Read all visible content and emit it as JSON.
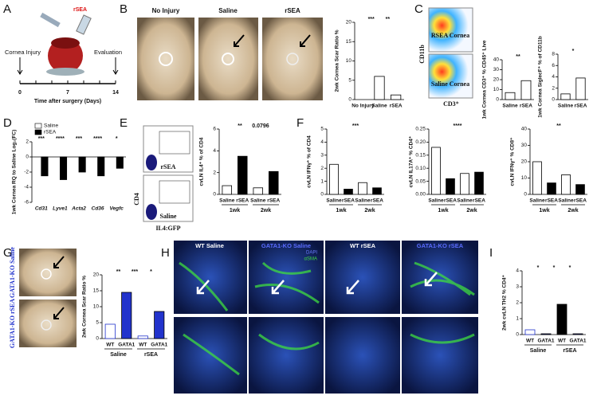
{
  "panels": {
    "A": {
      "label": "A",
      "drug": "rSEA",
      "start": "Cornea Injury",
      "end": "Evaluation",
      "days": [
        "0",
        "7",
        "14"
      ],
      "axis": "Time after surgery (Days)"
    },
    "B": {
      "label": "B",
      "photos": [
        "No Injury",
        "Saline",
        "rSEA"
      ]
    },
    "C": {
      "label": "C",
      "flow": [
        "RSEA Cornea",
        "Saline Cornea"
      ],
      "xaxis": "CD3⁺",
      "yaxis": "CD11b"
    },
    "D": {
      "label": "D"
    },
    "E": {
      "label": "E",
      "flow": [
        "rSEA",
        "Saline"
      ],
      "xaxis": "IL4:GFP",
      "yaxis": "CD4"
    },
    "F": {
      "label": "F"
    },
    "G": {
      "label": "G",
      "photos": [
        "GATA1-KO Saline",
        "GATA1-KO rSEA"
      ]
    },
    "H": {
      "label": "H",
      "images": [
        "WT Saline",
        "GATA1-KO Saline",
        "WT rSEA",
        "GATA1-KO rSEA"
      ],
      "stains": [
        "DAPI",
        "αSMA"
      ]
    },
    "I": {
      "label": "I"
    }
  },
  "chart_data": [
    {
      "type": "bar",
      "ylabel": "2wk Cornea Scar Ratio %",
      "categories": [
        "No Injury",
        "Saline",
        "rSEA"
      ],
      "values": [
        0,
        6,
        1.2
      ],
      "colors": [
        "#fff",
        "#fff",
        "#fff"
      ],
      "ylim": [
        0,
        20
      ],
      "yticks": [
        0,
        5,
        10,
        15,
        20
      ],
      "annotations": [
        "***",
        "**"
      ]
    },
    {
      "type": "bar",
      "ylabel": "1wk Cornea CD3⁺ % CD45⁺ Live",
      "categories": [
        "Saline",
        "rSEA"
      ],
      "values": [
        7,
        19
      ],
      "colors": [
        "#fff",
        "#fff"
      ],
      "ylim": [
        0,
        40
      ],
      "yticks": [
        0,
        10,
        20,
        30,
        40
      ],
      "annotations": [
        "**"
      ]
    },
    {
      "type": "bar",
      "ylabel": "1wk Cornea SiglecF⁺ % of CD11b",
      "categories": [
        "Saline",
        "rSEA"
      ],
      "values": [
        1,
        3.8
      ],
      "colors": [
        "#fff",
        "#fff"
      ],
      "ylim": [
        0,
        8
      ],
      "yticks": [
        0,
        2,
        4,
        6,
        8
      ],
      "annotations": [
        "*"
      ]
    },
    {
      "type": "grouped-bar",
      "ylabel": "1wk Cornea RQ to Saline Log₂(FC)",
      "categories": [
        "Cd31",
        "Lyve1",
        "Acta2",
        "Cd36",
        "Vegfc"
      ],
      "series": [
        {
          "name": "Saline",
          "color": "#fff",
          "values": [
            0,
            0,
            0,
            0,
            0
          ]
        },
        {
          "name": "rSEA",
          "color": "#000",
          "values": [
            -2.5,
            -3,
            -2,
            -2.5,
            -1.5
          ]
        }
      ],
      "ylim": [
        -6,
        2
      ],
      "yticks": [
        -6,
        -4,
        -2,
        0,
        2
      ],
      "annotations": [
        "***",
        "****",
        "***",
        "****",
        "*"
      ]
    },
    {
      "type": "bar",
      "ylabel": "cvLN IL4⁺ % of CD4",
      "categories": [
        "Saline",
        "rSEA",
        "Saline",
        "rSEA"
      ],
      "groups": [
        "1wk",
        "2wk"
      ],
      "values": [
        0.8,
        3.5,
        0.6,
        2.1
      ],
      "colors": [
        "#fff",
        "#000",
        "#fff",
        "#000"
      ],
      "ylim": [
        0,
        6
      ],
      "yticks": [
        0,
        2,
        4,
        6
      ],
      "annotations": [
        "**",
        "0.0796"
      ]
    },
    {
      "type": "bar",
      "ylabel": "cvLN IFNγ⁺ % of CD4",
      "categories": [
        "Saline",
        "rSEA",
        "Saline",
        "rSEA"
      ],
      "groups": [
        "1wk",
        "2wk"
      ],
      "values": [
        2.3,
        0.4,
        0.9,
        0.5
      ],
      "colors": [
        "#fff",
        "#000",
        "#fff",
        "#000"
      ],
      "ylim": [
        0,
        5
      ],
      "yticks": [
        0,
        1,
        2,
        3,
        4,
        5
      ],
      "annotations": [
        "***"
      ]
    },
    {
      "type": "bar",
      "ylabel": "cvLN IL17A⁺ % CD4⁺",
      "categories": [
        "Saline",
        "rSEA",
        "Saline",
        "rSEA"
      ],
      "groups": [
        "1wk",
        "2wk"
      ],
      "values": [
        0.18,
        0.06,
        0.08,
        0.085
      ],
      "colors": [
        "#fff",
        "#000",
        "#fff",
        "#000"
      ],
      "ylim": [
        0,
        0.25
      ],
      "yticks": [
        {
          "value": 0,
          "label": "0.00"
        },
        0.05,
        {
          "value": 0.1,
          "label": "0.10"
        },
        0.15,
        {
          "value": 0.2,
          "label": "0.20"
        },
        0.25
      ],
      "annotations": [
        "****"
      ]
    },
    {
      "type": "bar",
      "ylabel": "cvLN IFNγ⁺ % CD8⁺",
      "categories": [
        "Saline",
        "rSEA",
        "Saline",
        "rSEA"
      ],
      "groups": [
        "1wk",
        "2wk"
      ],
      "values": [
        20,
        7,
        12,
        6
      ],
      "colors": [
        "#fff",
        "#000",
        "#fff",
        "#000"
      ],
      "ylim": [
        0,
        40
      ],
      "yticks": [
        0,
        10,
        20,
        30,
        40
      ],
      "annotations": [
        "**"
      ]
    },
    {
      "type": "bar",
      "ylabel": "2wk Cornea Scar Ratio %",
      "categories": [
        "WT",
        "GATA1",
        "WT",
        "GATA1"
      ],
      "groups": [
        "Saline",
        "rSEA"
      ],
      "values": [
        4.5,
        14.5,
        0.8,
        8.5
      ],
      "colors": [
        "#fff",
        "#2233cc",
        "#fff",
        "#2233cc"
      ],
      "ylim": [
        0,
        20
      ],
      "yticks": [
        0,
        5,
        10,
        15,
        20
      ],
      "annotations": [
        "**",
        "***",
        "*"
      ]
    },
    {
      "type": "bar",
      "ylabel": "2wk cvLN TH2 % CD4⁺",
      "categories": [
        "WT",
        "GATA1",
        "WT",
        "GATA1"
      ],
      "groups": [
        "Saline",
        "rSEA"
      ],
      "values": [
        0.3,
        0.05,
        1.9,
        0.05
      ],
      "colors": [
        "#fff",
        "#2233cc",
        "#000",
        "#2233cc"
      ],
      "ylim": [
        0,
        4
      ],
      "yticks": [
        0,
        1,
        2,
        3,
        4
      ],
      "annotations": [
        "*",
        "*",
        "*"
      ]
    }
  ]
}
